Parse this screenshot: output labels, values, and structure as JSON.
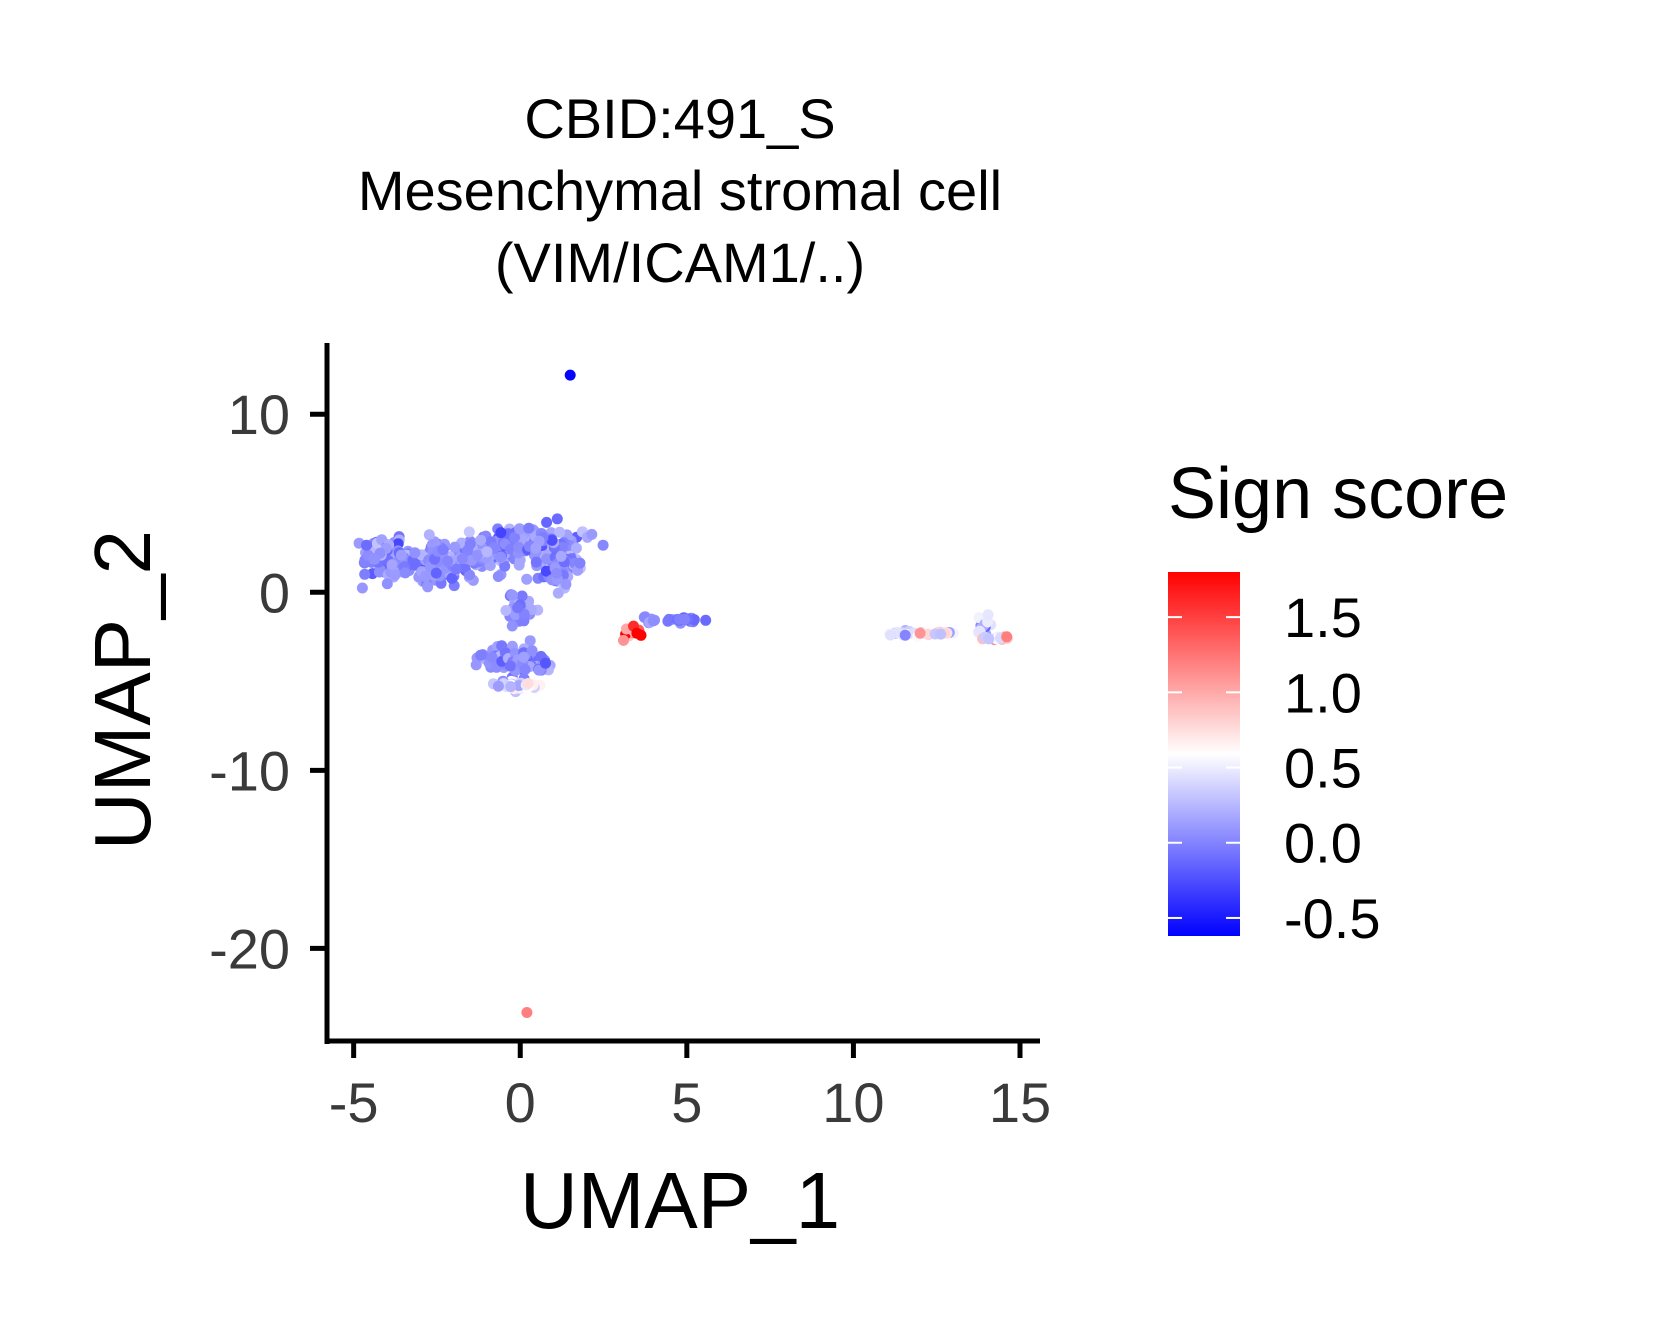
{
  "chart_data": {
    "type": "scatter",
    "title_lines": [
      "CBID:491_S",
      "Mesenchymal stromal cell",
      "(VIM/ICAM1/..)"
    ],
    "xlabel": "UMAP_1",
    "ylabel": "UMAP_2",
    "xlim": [
      -5.8,
      15.6
    ],
    "ylim": [
      -25.2,
      14
    ],
    "xticks": [
      -5,
      0,
      5,
      10,
      15
    ],
    "yticks": [
      10,
      0,
      -10,
      -20
    ],
    "grid": false,
    "legend": {
      "title": "Sign score",
      "placement": "right",
      "range": [
        -0.62,
        1.8
      ],
      "ticks": [
        1.5,
        1.0,
        0.5,
        0.0,
        -0.5
      ],
      "tick_labels": [
        "1.5",
        "1.0",
        "0.5",
        "0.0",
        "-0.5"
      ],
      "colors": {
        "low": "#0000ff",
        "mid": "#ffffff",
        "high": "#ff0000"
      },
      "midpoint": 0.59
    },
    "clusters": [
      {
        "x": -4.0,
        "y": 2.0,
        "sx": 0.7,
        "sy": 0.8,
        "n": 90,
        "score": 0.05,
        "spread": 0.12
      },
      {
        "x": -2.6,
        "y": 1.5,
        "sx": 0.9,
        "sy": 0.9,
        "n": 130,
        "score": 0.05,
        "spread": 0.12
      },
      {
        "x": -1.0,
        "y": 2.3,
        "sx": 0.9,
        "sy": 1.0,
        "n": 140,
        "score": 0.05,
        "spread": 0.12
      },
      {
        "x": 0.7,
        "y": 2.6,
        "sx": 0.9,
        "sy": 0.9,
        "n": 120,
        "score": 0.05,
        "spread": 0.12
      },
      {
        "x": 1.2,
        "y": 1.2,
        "sx": 0.4,
        "sy": 0.8,
        "n": 50,
        "score": 0.05,
        "spread": 0.12
      },
      {
        "x": 0.0,
        "y": -1.0,
        "sx": 0.3,
        "sy": 0.8,
        "n": 35,
        "score": 0.05,
        "spread": 0.1
      },
      {
        "x": -0.5,
        "y": -3.7,
        "sx": 0.6,
        "sy": 0.6,
        "n": 60,
        "score": 0.05,
        "spread": 0.12
      },
      {
        "x": 0.3,
        "y": -4.0,
        "sx": 0.5,
        "sy": 0.6,
        "n": 50,
        "score": 0.05,
        "spread": 0.12
      },
      {
        "x": -0.1,
        "y": -5.2,
        "sx": 0.55,
        "sy": 0.25,
        "n": 35,
        "score": 0.45,
        "spread": 0.2
      },
      {
        "x": 3.3,
        "y": -2.2,
        "sx": 0.25,
        "sy": 0.25,
        "n": 12,
        "score": 1.1,
        "spread": 0.35
      },
      {
        "x": 3.9,
        "y": -1.5,
        "sx": 0.35,
        "sy": 0.2,
        "n": 10,
        "score": 0.05,
        "spread": 0.1
      },
      {
        "x": 5.0,
        "y": -1.55,
        "sx": 0.6,
        "sy": 0.1,
        "n": 25,
        "score": -0.1,
        "spread": 0.08
      },
      {
        "x": 11.5,
        "y": -2.3,
        "sx": 0.35,
        "sy": 0.15,
        "n": 20,
        "score": 0.4,
        "spread": 0.2
      },
      {
        "x": 12.5,
        "y": -2.3,
        "sx": 0.5,
        "sy": 0.08,
        "n": 15,
        "score": 0.5,
        "spread": 0.3
      },
      {
        "x": 13.9,
        "y": -1.8,
        "sx": 0.2,
        "sy": 0.6,
        "n": 14,
        "score": 0.35,
        "spread": 0.3
      },
      {
        "x": 14.3,
        "y": -2.6,
        "sx": 0.25,
        "sy": 0.15,
        "n": 10,
        "score": 0.6,
        "spread": 0.35
      }
    ],
    "points": [
      {
        "x": 1.5,
        "y": 12.2,
        "score": -0.6
      },
      {
        "x": 0.2,
        "y": -23.6,
        "score": 1.2
      },
      {
        "x": 3.1,
        "y": -2.7,
        "score": 1.1
      },
      {
        "x": 3.4,
        "y": -1.9,
        "score": 1.6
      },
      {
        "x": 3.5,
        "y": -2.3,
        "score": 1.8
      },
      {
        "x": 14.6,
        "y": -2.5,
        "score": 1.2
      },
      {
        "x": 12.0,
        "y": -2.3,
        "score": 1.1
      }
    ]
  }
}
